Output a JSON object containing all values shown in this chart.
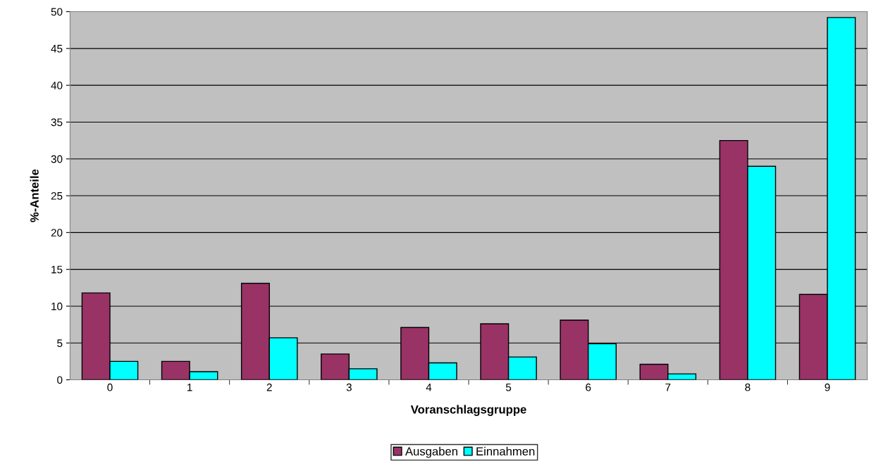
{
  "chart_data": {
    "type": "bar",
    "xlabel": "Voranschlagsgruppe",
    "ylabel": "%-Anteile",
    "categories": [
      "0",
      "1",
      "2",
      "3",
      "4",
      "5",
      "6",
      "7",
      "8",
      "9"
    ],
    "series": [
      {
        "name": "Ausgaben",
        "color": "#993366",
        "values": [
          11.8,
          2.5,
          13.1,
          3.5,
          7.1,
          7.6,
          8.1,
          2.1,
          32.5,
          11.6
        ]
      },
      {
        "name": "Einnahmen",
        "color": "#00ffff",
        "values": [
          2.5,
          1.1,
          5.7,
          1.5,
          2.3,
          3.1,
          4.9,
          0.8,
          29.0,
          49.2
        ]
      }
    ],
    "ylim": [
      0,
      50
    ],
    "yticks": [
      0,
      5,
      10,
      15,
      20,
      25,
      30,
      35,
      40,
      45,
      50
    ],
    "grid": "y",
    "legend": "bottom"
  }
}
